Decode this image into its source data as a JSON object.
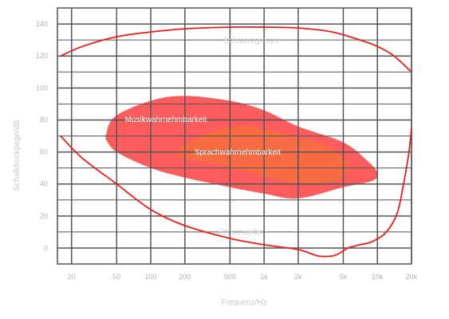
{
  "chart_data": {
    "type": "line",
    "title": "",
    "xlabel": "Frequenz/Hz",
    "ylabel": "Schalldruckpege/dB",
    "x_scale": "log",
    "xlim": [
      15,
      20000
    ],
    "ylim": [
      -10,
      150
    ],
    "grid": true,
    "x_ticks": [
      20,
      50,
      100,
      200,
      500,
      1000,
      2000,
      5000,
      10000,
      20000
    ],
    "x_tick_labels": [
      "20",
      "50",
      "100",
      "200",
      "500",
      "1k",
      "2k",
      "5k",
      "10k",
      "20k"
    ],
    "y_ticks": [
      0,
      20,
      40,
      60,
      80,
      100,
      120,
      140
    ],
    "y_tick_labels": [
      "0",
      "20",
      "40",
      "60",
      "80",
      "100",
      "120",
      "140"
    ],
    "colors": {
      "curve": "#ee1c1c",
      "music": "#ff5a5a",
      "speech": "#f5713a",
      "grid": "#555555",
      "tick": "#b3b3b3"
    },
    "series": [
      {
        "name": "Schmerzgrenze",
        "points": [
          [
            16,
            120
          ],
          [
            25,
            126
          ],
          [
            50,
            132
          ],
          [
            100,
            135
          ],
          [
            200,
            137
          ],
          [
            500,
            138
          ],
          [
            1000,
            138
          ],
          [
            2000,
            137.5
          ],
          [
            4000,
            135
          ],
          [
            7000,
            130
          ],
          [
            10000,
            126
          ],
          [
            14000,
            120
          ],
          [
            20000,
            110
          ]
        ]
      },
      {
        "name": "Hörschwelle",
        "points": [
          [
            16,
            70
          ],
          [
            25,
            56
          ],
          [
            50,
            40
          ],
          [
            100,
            24
          ],
          [
            200,
            14
          ],
          [
            500,
            6
          ],
          [
            1000,
            2
          ],
          [
            2000,
            -1
          ],
          [
            3000,
            -5
          ],
          [
            4000,
            -5
          ],
          [
            4700,
            -3
          ],
          [
            5500,
            0
          ],
          [
            7000,
            2
          ],
          [
            9000,
            4
          ],
          [
            12000,
            10
          ],
          [
            15000,
            22
          ],
          [
            17000,
            40
          ],
          [
            19000,
            60
          ],
          [
            20000,
            75
          ]
        ]
      }
    ],
    "regions": [
      {
        "name": "Musikwahrnehmbarkeit",
        "points": [
          [
            40,
            70
          ],
          [
            48,
            82
          ],
          [
            100,
            92
          ],
          [
            200,
            95
          ],
          [
            500,
            92
          ],
          [
            1000,
            86
          ],
          [
            2000,
            76
          ],
          [
            5000,
            66
          ],
          [
            8000,
            55
          ],
          [
            10000,
            47
          ],
          [
            9000,
            42
          ],
          [
            5000,
            38
          ],
          [
            2000,
            31
          ],
          [
            1000,
            34
          ],
          [
            500,
            38
          ],
          [
            200,
            44
          ],
          [
            100,
            50
          ],
          [
            50,
            60
          ],
          [
            40,
            68
          ]
        ]
      },
      {
        "name": "Sprachwahrnehmbarkeit",
        "points": [
          [
            170,
            58
          ],
          [
            200,
            65
          ],
          [
            400,
            74
          ],
          [
            700,
            76
          ],
          [
            1200,
            73
          ],
          [
            2000,
            69
          ],
          [
            3500,
            64
          ],
          [
            5000,
            57
          ],
          [
            5500,
            50
          ],
          [
            4500,
            43
          ],
          [
            3000,
            40
          ],
          [
            1500,
            42
          ],
          [
            800,
            47
          ],
          [
            400,
            52
          ],
          [
            200,
            56
          ],
          [
            170,
            58
          ]
        ]
      }
    ]
  }
}
